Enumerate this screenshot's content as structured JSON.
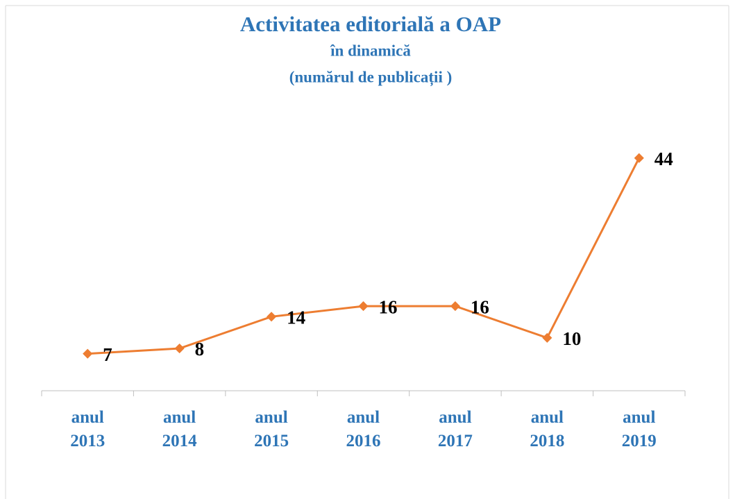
{
  "chart_data": {
    "type": "line",
    "title": "Activitatea editorială a OAP",
    "subtitle": [
      "în dinamică",
      "(numărul de publicații )"
    ],
    "categories": [
      "anul 2013",
      "anul 2014",
      "anul 2015",
      "anul 2016",
      "anul 2017",
      "anul 2018",
      "anul 2019"
    ],
    "series": [
      {
        "name": "publicații",
        "color": "#ed7d31",
        "values": [
          7,
          8,
          14,
          16,
          16,
          10,
          44
        ]
      }
    ],
    "ylim": [
      0,
      50
    ]
  }
}
